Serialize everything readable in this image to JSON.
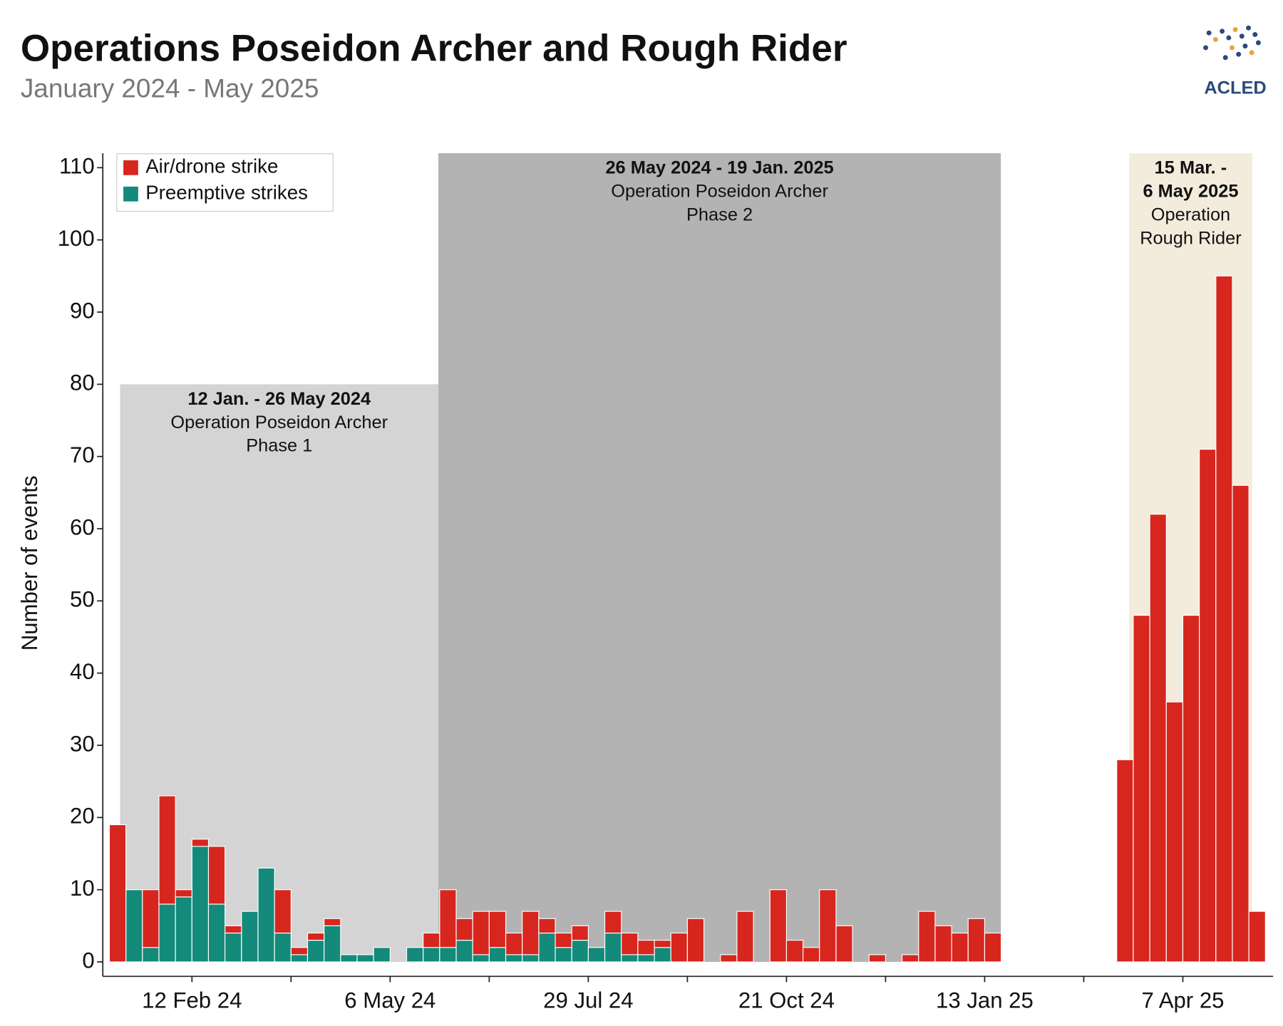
{
  "chart_data": {
    "type": "stacked_bar",
    "title": "Operations Poseidon Archer and Rough Rider",
    "subtitle": "January 2024 - May 2025",
    "logo": "ACLED",
    "y_label": "Number of events",
    "categories": [
      null,
      null,
      null,
      null,
      null,
      "12 Feb 24",
      null,
      null,
      null,
      null,
      null,
      null,
      null,
      null,
      null,
      null,
      null,
      "6 May 24",
      null,
      null,
      null,
      null,
      null,
      null,
      null,
      null,
      null,
      null,
      null,
      "29 Jul 24",
      null,
      null,
      null,
      null,
      null,
      null,
      null,
      null,
      null,
      null,
      null,
      "21 Oct 24",
      null,
      null,
      null,
      null,
      null,
      null,
      null,
      null,
      null,
      null,
      null,
      "13 Jan 25",
      null,
      null,
      null,
      null,
      null,
      null,
      null,
      null,
      null,
      null,
      null,
      "7 Apr 25",
      null,
      null,
      null,
      null
    ],
    "series": [
      {
        "name": "Air/drone strike",
        "color": "#d7261e",
        "values": [
          19,
          0,
          8,
          15,
          1,
          1,
          8,
          1,
          0,
          0,
          6,
          1,
          1,
          1,
          0,
          0,
          0,
          0,
          0,
          2,
          8,
          3,
          6,
          5,
          3,
          6,
          2,
          2,
          2,
          0,
          3,
          3,
          2,
          1,
          4,
          6,
          0,
          1,
          7,
          0,
          10,
          3,
          2,
          10,
          5,
          0,
          1,
          0,
          1,
          7,
          5,
          4,
          6,
          4,
          0,
          0,
          0,
          0,
          0,
          0,
          0,
          28,
          48,
          62,
          36,
          48,
          71,
          95,
          66,
          7
        ]
      },
      {
        "name": "Preemptive strikes",
        "color": "#138a7a",
        "values": [
          0,
          10,
          2,
          8,
          9,
          16,
          8,
          4,
          7,
          13,
          4,
          1,
          3,
          5,
          1,
          1,
          2,
          0,
          2,
          2,
          2,
          3,
          1,
          2,
          1,
          1,
          4,
          2,
          3,
          2,
          4,
          1,
          1,
          2,
          0,
          0,
          0,
          0,
          0,
          0,
          0,
          0,
          0,
          0,
          0,
          0,
          0,
          0,
          0,
          0,
          0,
          0,
          0,
          0,
          0,
          0,
          0,
          0,
          0,
          0,
          0,
          0,
          0,
          0,
          0,
          0,
          0,
          0,
          0,
          0
        ]
      }
    ],
    "ylim": [
      -2,
      112
    ],
    "yticks": [
      0,
      10,
      20,
      30,
      40,
      50,
      60,
      70,
      80,
      90,
      100,
      110
    ],
    "legend": "top-left",
    "shaded_periods": [
      {
        "date": [
          "12 Jan. - 26 May 2024"
        ],
        "text": [
          "Operation Poseidon Archer",
          "Phase 1"
        ],
        "color": "#d4d4d4",
        "top": 80
      },
      {
        "date": [
          "26 May 2024 - 19 Jan. 2025"
        ],
        "text": [
          "Operation Poseidon Archer",
          "Phase 2"
        ],
        "color": "#b3b3b3",
        "top": 112
      },
      {
        "date": [
          "15 Mar. -",
          "6 May 2025"
        ],
        "text": [
          "Operation",
          "Rough Rider"
        ],
        "color": "#f3ebdc",
        "top": 112
      }
    ]
  }
}
